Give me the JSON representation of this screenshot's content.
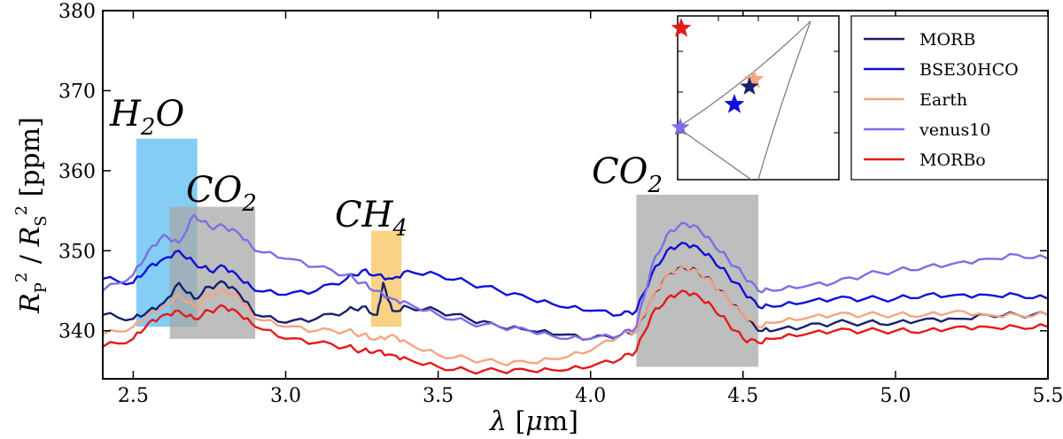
{
  "chart_data": {
    "type": "line",
    "xlabel": "λ [μm]",
    "ylabel": "R_P^2 / R_S^2 [ppm]",
    "xlim": [
      2.4,
      5.5
    ],
    "ylim": [
      334,
      380
    ],
    "xticks": [
      2.5,
      3.0,
      3.5,
      4.0,
      4.5,
      5.0,
      5.5
    ],
    "xtick_labels": [
      "2.5",
      "3.0",
      "3.5",
      "4.0",
      "4.5",
      "5.0",
      "5.5"
    ],
    "yticks": [
      340,
      350,
      360,
      370,
      380
    ],
    "ytick_labels": [
      "340",
      "350",
      "360",
      "370",
      "380"
    ],
    "legend_position": "top-right",
    "bands": [
      {
        "label": "H2O",
        "x0": 2.51,
        "x1": 2.71,
        "y0": 340.5,
        "y1": 364,
        "color": "#5bbcf0"
      },
      {
        "label": "CO2",
        "x0": 2.62,
        "x1": 2.9,
        "y0": 339,
        "y1": 355.5,
        "color": "#a8a8a8"
      },
      {
        "label": "CH4",
        "x0": 3.28,
        "x1": 3.38,
        "y0": 340.5,
        "y1": 352.5,
        "color": "#f8c35c"
      },
      {
        "label": "CO2",
        "x0": 4.15,
        "x1": 4.55,
        "y0": 335.5,
        "y1": 357,
        "color": "#a8a8a8"
      }
    ],
    "band_labels": [
      {
        "base": "H",
        "sub": "2",
        "tail": "O"
      },
      {
        "base": "CO",
        "sub": "2",
        "tail": ""
      },
      {
        "base": "CH",
        "sub": "4",
        "tail": ""
      },
      {
        "base": "CO",
        "sub": "2",
        "tail": ""
      }
    ],
    "series": [
      {
        "name": "MORB",
        "color": "#1a1f6e",
        "points": [
          [
            2.4,
            342
          ],
          [
            2.5,
            341.5
          ],
          [
            2.55,
            342.5
          ],
          [
            2.6,
            343.5
          ],
          [
            2.65,
            346
          ],
          [
            2.7,
            344
          ],
          [
            2.75,
            345.5
          ],
          [
            2.8,
            346
          ],
          [
            2.85,
            344.5
          ],
          [
            2.9,
            342
          ],
          [
            3.0,
            341
          ],
          [
            3.1,
            341.5
          ],
          [
            3.2,
            342.5
          ],
          [
            3.25,
            343
          ],
          [
            3.3,
            342
          ],
          [
            3.32,
            346
          ],
          [
            3.35,
            342.5
          ],
          [
            3.4,
            343
          ],
          [
            3.5,
            342.5
          ],
          [
            3.6,
            341.5
          ],
          [
            3.7,
            340.5
          ],
          [
            3.8,
            340
          ],
          [
            3.9,
            339.5
          ],
          [
            4.0,
            339
          ],
          [
            4.1,
            339.5
          ],
          [
            4.15,
            340
          ],
          [
            4.2,
            344
          ],
          [
            4.25,
            347
          ],
          [
            4.3,
            348
          ],
          [
            4.35,
            347.5
          ],
          [
            4.4,
            346
          ],
          [
            4.45,
            344
          ],
          [
            4.5,
            342
          ],
          [
            4.55,
            340
          ],
          [
            4.6,
            340
          ],
          [
            4.7,
            340.5
          ],
          [
            4.8,
            341
          ],
          [
            4.9,
            341
          ],
          [
            5.0,
            341
          ],
          [
            5.1,
            341.5
          ],
          [
            5.2,
            341.5
          ],
          [
            5.3,
            342
          ],
          [
            5.4,
            342
          ],
          [
            5.5,
            342
          ]
        ]
      },
      {
        "name": "BSE30HCO",
        "color": "#1010d8",
        "points": [
          [
            2.4,
            346.5
          ],
          [
            2.5,
            346
          ],
          [
            2.55,
            348
          ],
          [
            2.6,
            349
          ],
          [
            2.65,
            350
          ],
          [
            2.7,
            348.5
          ],
          [
            2.75,
            347.5
          ],
          [
            2.8,
            348
          ],
          [
            2.85,
            346.5
          ],
          [
            2.9,
            345
          ],
          [
            3.0,
            344.5
          ],
          [
            3.1,
            345
          ],
          [
            3.2,
            346.5
          ],
          [
            3.25,
            347.5
          ],
          [
            3.3,
            347
          ],
          [
            3.35,
            346.5
          ],
          [
            3.4,
            347.5
          ],
          [
            3.5,
            347
          ],
          [
            3.6,
            346
          ],
          [
            3.7,
            345
          ],
          [
            3.8,
            344
          ],
          [
            3.9,
            343
          ],
          [
            4.0,
            342.5
          ],
          [
            4.1,
            342
          ],
          [
            4.15,
            342.5
          ],
          [
            4.2,
            347
          ],
          [
            4.25,
            350
          ],
          [
            4.3,
            351
          ],
          [
            4.35,
            350.5
          ],
          [
            4.4,
            349
          ],
          [
            4.45,
            347
          ],
          [
            4.5,
            345
          ],
          [
            4.55,
            343
          ],
          [
            4.6,
            343
          ],
          [
            4.7,
            343.5
          ],
          [
            4.8,
            344
          ],
          [
            4.9,
            344
          ],
          [
            5.0,
            344
          ],
          [
            5.1,
            344.5
          ],
          [
            5.2,
            344.5
          ],
          [
            5.3,
            344.5
          ],
          [
            5.4,
            344.5
          ],
          [
            5.5,
            344
          ]
        ]
      },
      {
        "name": "Earth",
        "color": "#f4a582",
        "points": [
          [
            2.4,
            339.5
          ],
          [
            2.5,
            340.5
          ],
          [
            2.55,
            342
          ],
          [
            2.6,
            343
          ],
          [
            2.65,
            344.5
          ],
          [
            2.7,
            343
          ],
          [
            2.75,
            344.5
          ],
          [
            2.8,
            345
          ],
          [
            2.85,
            344
          ],
          [
            2.9,
            341.5
          ],
          [
            3.0,
            340.5
          ],
          [
            3.1,
            340
          ],
          [
            3.2,
            340
          ],
          [
            3.25,
            339.5
          ],
          [
            3.3,
            339
          ],
          [
            3.35,
            339.5
          ],
          [
            3.4,
            338.5
          ],
          [
            3.5,
            337
          ],
          [
            3.6,
            336.5
          ],
          [
            3.7,
            336
          ],
          [
            3.8,
            336
          ],
          [
            3.9,
            336.5
          ],
          [
            4.0,
            337.5
          ],
          [
            4.1,
            339.5
          ],
          [
            4.15,
            340
          ],
          [
            4.2,
            344
          ],
          [
            4.25,
            347
          ],
          [
            4.3,
            348
          ],
          [
            4.35,
            347.5
          ],
          [
            4.4,
            346
          ],
          [
            4.45,
            344
          ],
          [
            4.5,
            342
          ],
          [
            4.55,
            340.5
          ],
          [
            4.6,
            341
          ],
          [
            4.7,
            341.5
          ],
          [
            4.8,
            342
          ],
          [
            4.9,
            342
          ],
          [
            5.0,
            342
          ],
          [
            5.1,
            342
          ],
          [
            5.2,
            342.5
          ],
          [
            5.3,
            342
          ],
          [
            5.4,
            342
          ],
          [
            5.5,
            342
          ]
        ]
      },
      {
        "name": "venus10",
        "color": "#7b6ee6",
        "points": [
          [
            2.4,
            345
          ],
          [
            2.5,
            347
          ],
          [
            2.55,
            350
          ],
          [
            2.6,
            352
          ],
          [
            2.65,
            351
          ],
          [
            2.7,
            354.5
          ],
          [
            2.75,
            353
          ],
          [
            2.8,
            353
          ],
          [
            2.85,
            352
          ],
          [
            2.9,
            350
          ],
          [
            3.0,
            349
          ],
          [
            3.1,
            348
          ],
          [
            3.2,
            347
          ],
          [
            3.25,
            346
          ],
          [
            3.3,
            345
          ],
          [
            3.35,
            344
          ],
          [
            3.4,
            343.5
          ],
          [
            3.5,
            342
          ],
          [
            3.6,
            341
          ],
          [
            3.7,
            340.5
          ],
          [
            3.8,
            340
          ],
          [
            3.9,
            339
          ],
          [
            4.0,
            339
          ],
          [
            4.1,
            339.5
          ],
          [
            4.15,
            340.5
          ],
          [
            4.2,
            348
          ],
          [
            4.25,
            352
          ],
          [
            4.3,
            353.5
          ],
          [
            4.35,
            353
          ],
          [
            4.4,
            351
          ],
          [
            4.45,
            349
          ],
          [
            4.5,
            347
          ],
          [
            4.55,
            345
          ],
          [
            4.6,
            345
          ],
          [
            4.7,
            345.5
          ],
          [
            4.8,
            346
          ],
          [
            4.9,
            347
          ],
          [
            5.0,
            347.5
          ],
          [
            5.1,
            348
          ],
          [
            5.2,
            348.5
          ],
          [
            5.3,
            349
          ],
          [
            5.4,
            349.5
          ],
          [
            5.5,
            349
          ]
        ]
      },
      {
        "name": "MORBo",
        "color": "#e41a1c",
        "points": [
          [
            2.4,
            338
          ],
          [
            2.5,
            339
          ],
          [
            2.55,
            341
          ],
          [
            2.6,
            342
          ],
          [
            2.65,
            342.5
          ],
          [
            2.7,
            341.5
          ],
          [
            2.75,
            342.5
          ],
          [
            2.8,
            343
          ],
          [
            2.85,
            342
          ],
          [
            2.9,
            340.5
          ],
          [
            3.0,
            339
          ],
          [
            3.1,
            338.5
          ],
          [
            3.2,
            338
          ],
          [
            3.25,
            337.5
          ],
          [
            3.3,
            337.5
          ],
          [
            3.35,
            337
          ],
          [
            3.4,
            336.5
          ],
          [
            3.5,
            335.5
          ],
          [
            3.6,
            335
          ],
          [
            3.7,
            335
          ],
          [
            3.8,
            335
          ],
          [
            3.9,
            335
          ],
          [
            4.0,
            335.5
          ],
          [
            4.1,
            336.5
          ],
          [
            4.15,
            337.5
          ],
          [
            4.2,
            342
          ],
          [
            4.25,
            344
          ],
          [
            4.3,
            345
          ],
          [
            4.35,
            344.5
          ],
          [
            4.4,
            343
          ],
          [
            4.45,
            341
          ],
          [
            4.5,
            339
          ],
          [
            4.55,
            338.5
          ],
          [
            4.6,
            339
          ],
          [
            4.7,
            339.5
          ],
          [
            4.8,
            340
          ],
          [
            4.9,
            340
          ],
          [
            5.0,
            340
          ],
          [
            5.1,
            340
          ],
          [
            5.2,
            340.5
          ],
          [
            5.3,
            340.5
          ],
          [
            5.4,
            340.5
          ],
          [
            5.5,
            340.5
          ]
        ]
      }
    ],
    "inset": {
      "type": "scatter",
      "star_colors": [
        "#e41a1c",
        "#f4a582",
        "#1a1f6e",
        "#1010d8",
        "#7b6ee6"
      ]
    }
  }
}
